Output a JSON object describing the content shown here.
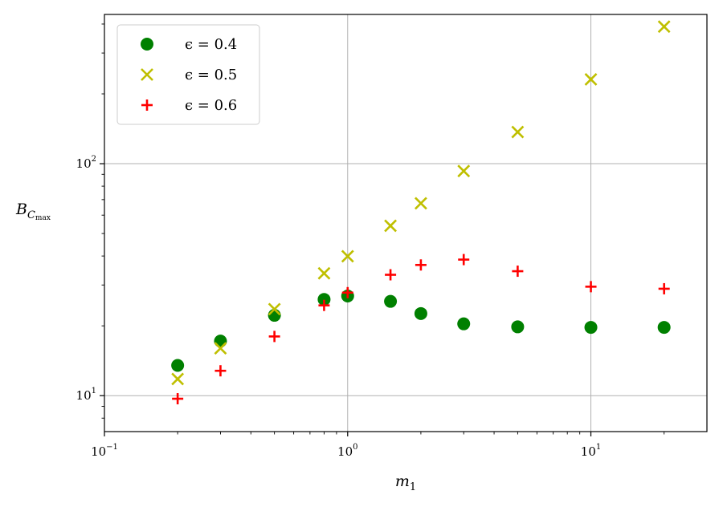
{
  "chart_data": {
    "type": "scatter",
    "xscale": "log",
    "yscale": "log",
    "xlim": [
      0.1,
      30
    ],
    "ylim": [
      7,
      440
    ],
    "xlabel_base": "m",
    "xlabel_sub": "1",
    "ylabel_base": "B",
    "ylabel_sub1": "C",
    "ylabel_sub2": "max",
    "grid": true,
    "legend_position": "top-left",
    "xticks": [
      {
        "value": 0.1,
        "base": "10",
        "exp": "−1"
      },
      {
        "value": 1,
        "base": "10",
        "exp": "0"
      },
      {
        "value": 10,
        "base": "10",
        "exp": "1"
      }
    ],
    "yticks": [
      {
        "value": 10,
        "base": "10",
        "exp": "1"
      },
      {
        "value": 100,
        "base": "10",
        "exp": "2"
      }
    ],
    "series": [
      {
        "name": "ϵ = 0.4",
        "marker": "circle",
        "color": "#008000",
        "x": [
          0.2,
          0.3,
          0.5,
          0.8,
          1,
          1.5,
          2,
          3,
          5,
          10,
          20
        ],
        "y": [
          13.5,
          17.2,
          22.2,
          26.0,
          26.9,
          25.5,
          22.6,
          20.4,
          19.8,
          19.7,
          19.7
        ]
      },
      {
        "name": "ϵ = 0.5",
        "marker": "x",
        "color": "#bfbf00",
        "x": [
          0.2,
          0.3,
          0.5,
          0.8,
          1,
          1.5,
          2,
          3,
          5,
          10,
          20
        ],
        "y": [
          11.8,
          16.0,
          23.6,
          33.7,
          39.9,
          54.0,
          67.5,
          93.0,
          137,
          231,
          390
        ]
      },
      {
        "name": "ϵ = 0.6",
        "marker": "plus",
        "color": "#ff0000",
        "x": [
          0.2,
          0.3,
          0.5,
          0.8,
          1,
          1.5,
          2,
          3,
          5,
          10,
          20
        ],
        "y": [
          9.7,
          12.8,
          18.0,
          24.5,
          27.8,
          33.2,
          36.6,
          38.6,
          34.4,
          29.5,
          28.9
        ]
      }
    ]
  }
}
